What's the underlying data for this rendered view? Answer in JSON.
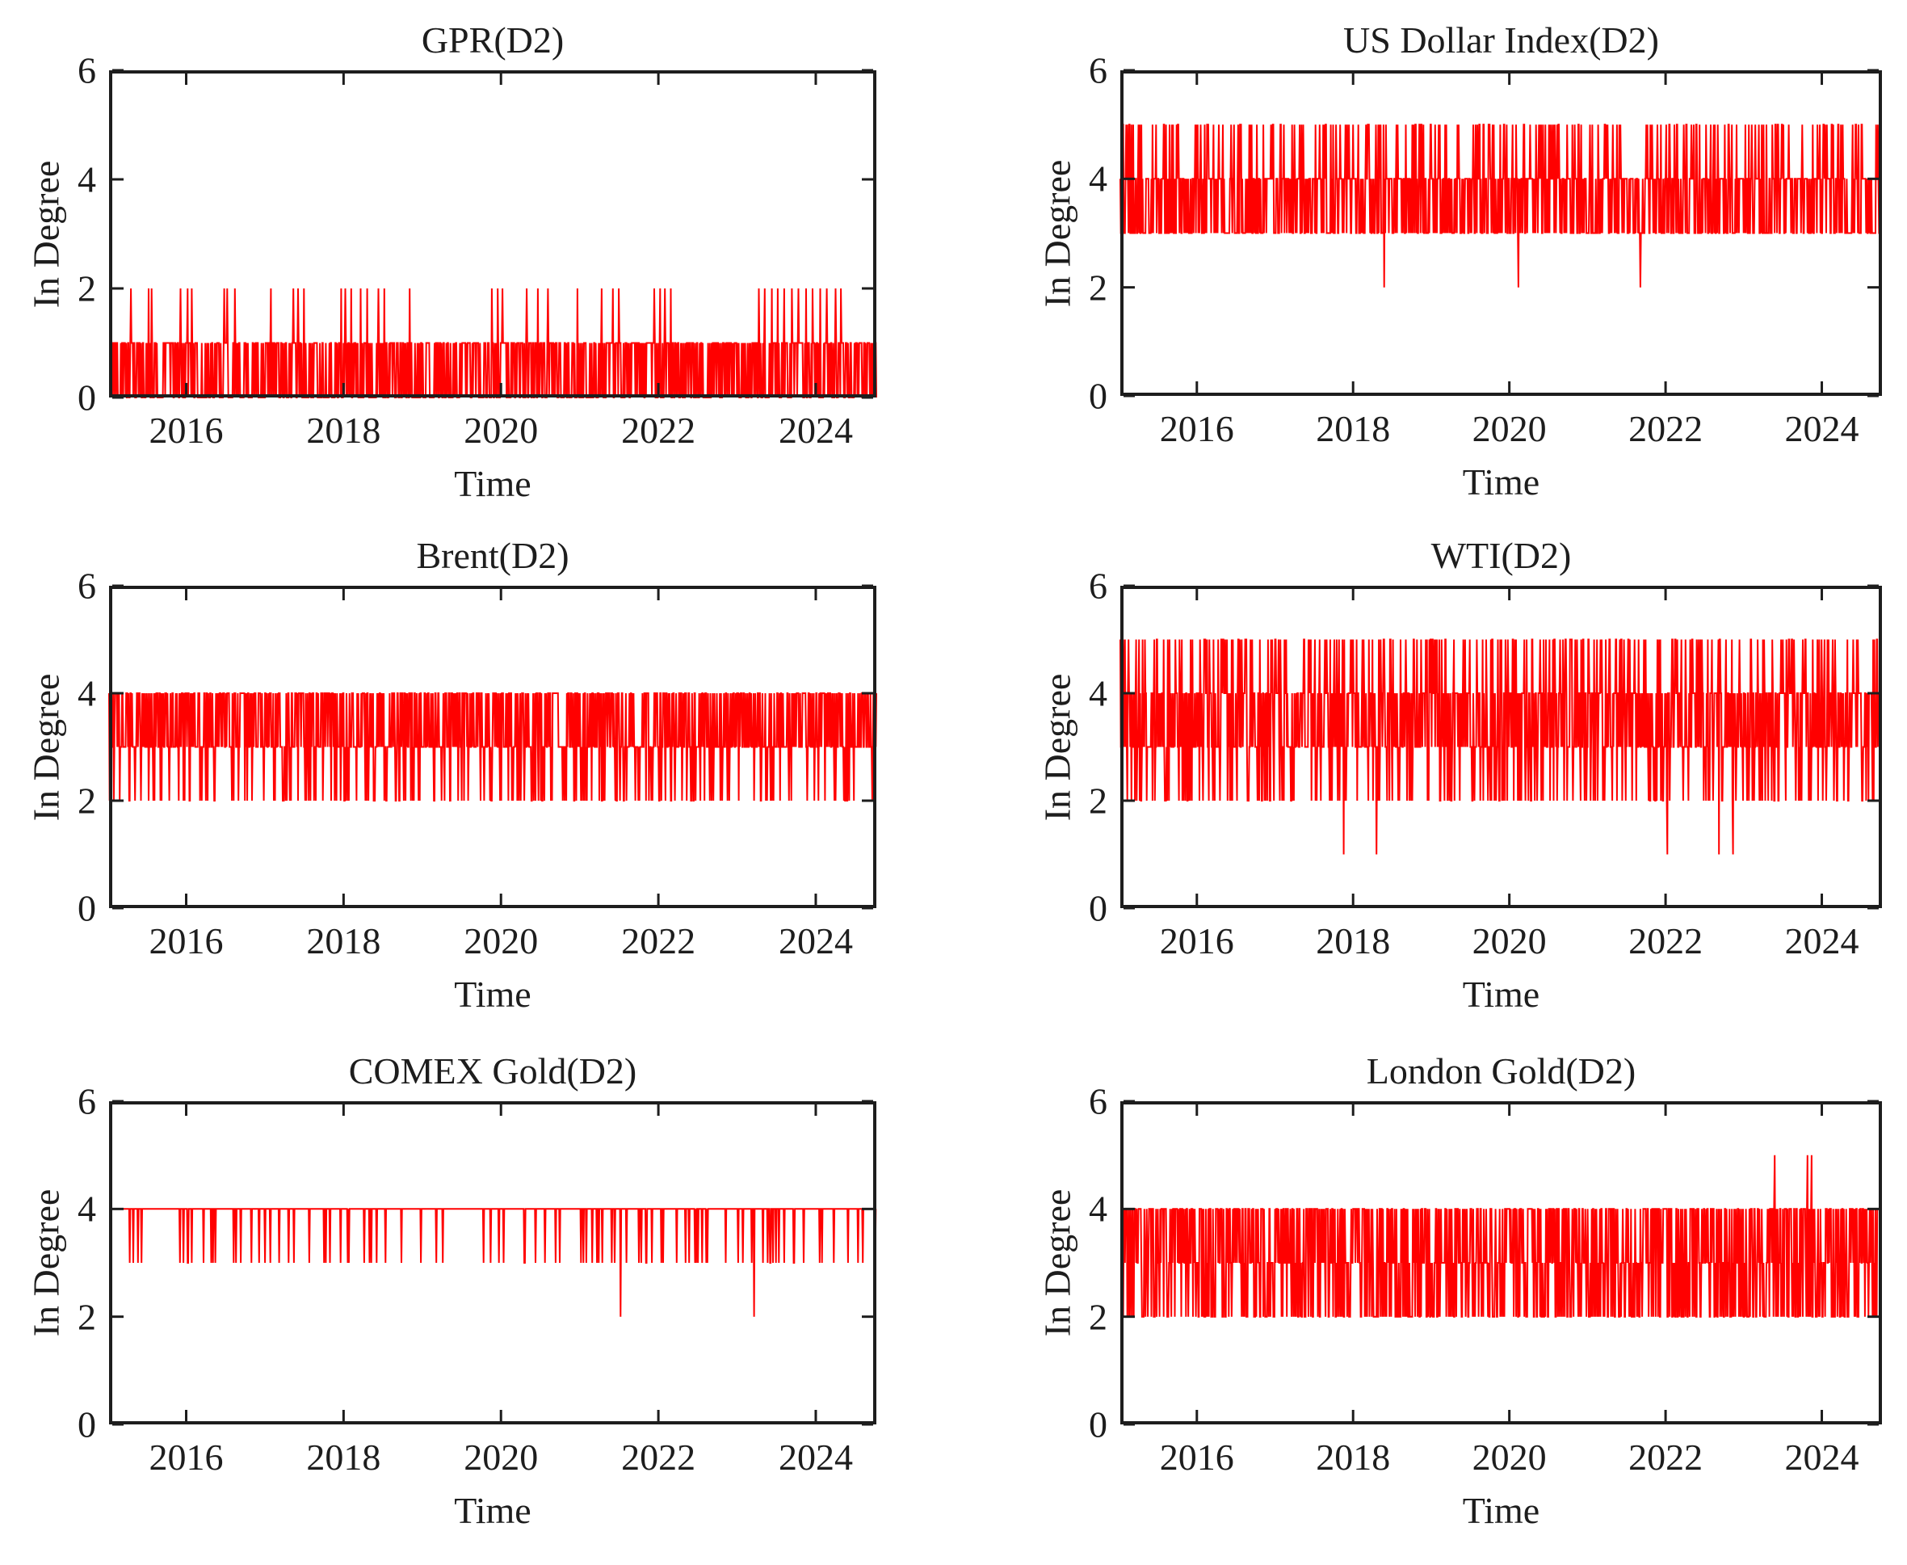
{
  "figure": {
    "background": "#ffffff",
    "axis_color": "#1d1d1d",
    "text_color": "#1d1d1d",
    "series_color": "#ff0000",
    "grid": "off",
    "legend": "none",
    "layout_note": "2 columns x 3 rows of MATLAB-style box axes, red line series"
  },
  "chart_data": [
    {
      "type": "line",
      "title": "GPR(D2)",
      "xlabel": "Time",
      "ylabel": "In Degree",
      "xlim": [
        2015.02,
        2024.77
      ],
      "ylim": [
        0,
        6
      ],
      "xticks": [
        2016,
        2018,
        2020,
        2022,
        2024
      ],
      "xtick_labels": [
        "2016",
        "2018",
        "2020",
        "2022",
        "2024"
      ],
      "yticks": [
        0,
        2,
        4,
        6
      ],
      "ytick_labels": [
        "0",
        "2",
        "4",
        "6"
      ],
      "color": "#ff0000",
      "summary": "In-degree oscillates densely between 0 and 1 for 2015-2024.5; isolated spikes reach 2, clustered in 2015-2018.5, 2020-2022.2 and 2023.2-2024.4; brief all-zero gaps near 2015.65, 2016.16, 2016.57, 2019.03, 2020.78, 2021.1.",
      "series_model": {
        "seed": 11,
        "samples": 1300,
        "levels": [
          0,
          1
        ],
        "probs": [
          0.48,
          0.52
        ],
        "random_spikes": [],
        "flat_intervals": [
          [
            2015.63,
            2015.68,
            0
          ],
          [
            2016.14,
            2016.19,
            0
          ],
          [
            2016.55,
            2016.59,
            0
          ],
          [
            2019.01,
            2019.05,
            0
          ],
          [
            2020.76,
            2020.8,
            0
          ],
          [
            2021.08,
            2021.12,
            0
          ]
        ],
        "events": [
          [
            2015.3,
            2
          ],
          [
            2015.52,
            2
          ],
          [
            2015.56,
            2
          ],
          [
            2015.93,
            2
          ],
          [
            2016.02,
            2
          ],
          [
            2016.07,
            2
          ],
          [
            2016.48,
            2
          ],
          [
            2016.52,
            2
          ],
          [
            2016.62,
            2
          ],
          [
            2017.08,
            2
          ],
          [
            2017.36,
            2
          ],
          [
            2017.42,
            2
          ],
          [
            2017.5,
            2
          ],
          [
            2017.97,
            2
          ],
          [
            2018.02,
            2
          ],
          [
            2018.1,
            2
          ],
          [
            2018.22,
            2
          ],
          [
            2018.3,
            2
          ],
          [
            2018.44,
            2
          ],
          [
            2018.52,
            2
          ],
          [
            2018.84,
            2
          ],
          [
            2019.88,
            2
          ],
          [
            2019.96,
            2
          ],
          [
            2020.02,
            2
          ],
          [
            2020.33,
            2
          ],
          [
            2020.47,
            2
          ],
          [
            2020.6,
            2
          ],
          [
            2020.97,
            2
          ],
          [
            2021.28,
            2
          ],
          [
            2021.42,
            2
          ],
          [
            2021.5,
            2
          ],
          [
            2021.95,
            2
          ],
          [
            2022.02,
            2
          ],
          [
            2022.08,
            2
          ],
          [
            2022.16,
            2
          ],
          [
            2023.28,
            2
          ],
          [
            2023.35,
            2
          ],
          [
            2023.44,
            2
          ],
          [
            2023.52,
            2
          ],
          [
            2023.6,
            2
          ],
          [
            2023.7,
            2
          ],
          [
            2023.78,
            2
          ],
          [
            2023.88,
            2
          ],
          [
            2023.96,
            2
          ],
          [
            2024.06,
            2
          ],
          [
            2024.14,
            2
          ],
          [
            2024.25,
            2
          ],
          [
            2024.32,
            2
          ]
        ]
      }
    },
    {
      "type": "line",
      "title": "US Dollar Index(D2)",
      "xlabel": "Time",
      "ylabel": "In Degree",
      "xlim": [
        2015.02,
        2024.77
      ],
      "ylim": [
        0,
        6
      ],
      "xticks": [
        2016,
        2018,
        2020,
        2022,
        2024
      ],
      "xtick_labels": [
        "2016",
        "2018",
        "2020",
        "2022",
        "2024"
      ],
      "yticks": [
        0,
        2,
        4,
        6
      ],
      "ytick_labels": [
        "0",
        "2",
        "4",
        "6"
      ],
      "color": "#ff0000",
      "summary": "Dense band oscillating between 3 and 4 over the whole sample; frequent spikes to 5 throughout; three isolated drops to 2 near 2018.4, 2020.1 and 2021.7.",
      "series_model": {
        "seed": 22,
        "samples": 1300,
        "levels": [
          3,
          4
        ],
        "probs": [
          0.5,
          0.5
        ],
        "random_spikes": [
          {
            "level": 5,
            "prob": 0.17
          }
        ],
        "flat_intervals": [],
        "events": [
          [
            2018.4,
            2
          ],
          [
            2020.12,
            2
          ],
          [
            2021.68,
            2
          ]
        ]
      }
    },
    {
      "type": "line",
      "title": "Brent(D2)",
      "xlabel": "Time",
      "ylabel": "In Degree",
      "xlim": [
        2015.02,
        2024.77
      ],
      "ylim": [
        0,
        6
      ],
      "xticks": [
        2016,
        2018,
        2020,
        2022,
        2024
      ],
      "xtick_labels": [
        "2016",
        "2018",
        "2020",
        "2022",
        "2024"
      ],
      "yticks": [
        0,
        2,
        4,
        6
      ],
      "ytick_labels": [
        "0",
        "2",
        "4",
        "6"
      ],
      "color": "#ff0000",
      "summary": "Dense band oscillating between 3 and 4; frequent thin drops to 2 scattered across 2015-2024.5; no values above 4.",
      "series_model": {
        "seed": 33,
        "samples": 1300,
        "levels": [
          3,
          4
        ],
        "probs": [
          0.52,
          0.48
        ],
        "random_spikes": [
          {
            "level": 2,
            "prob": 0.13
          }
        ],
        "flat_intervals": [],
        "events": []
      }
    },
    {
      "type": "line",
      "title": "WTI(D2)",
      "xlabel": "Time",
      "ylabel": "In Degree",
      "xlim": [
        2015.02,
        2024.77
      ],
      "ylim": [
        0,
        6
      ],
      "xticks": [
        2016,
        2018,
        2020,
        2022,
        2024
      ],
      "xtick_labels": [
        "2016",
        "2018",
        "2020",
        "2022",
        "2024"
      ],
      "yticks": [
        0,
        2,
        4,
        6
      ],
      "ytick_labels": [
        "0",
        "2",
        "4",
        "6"
      ],
      "color": "#ff0000",
      "summary": "Dense band between 3 and 4 with frequent spikes up to 5 and down to 2 across the whole period; rare deep drops to 1 near 2017.9, 2018.3, 2022.0, 2022.7 and 2022.9.",
      "series_model": {
        "seed": 44,
        "samples": 1300,
        "levels": [
          3,
          4
        ],
        "probs": [
          0.5,
          0.5
        ],
        "random_spikes": [
          {
            "level": 5,
            "prob": 0.18
          },
          {
            "level": 2,
            "prob": 0.18
          }
        ],
        "flat_intervals": [],
        "events": [
          [
            2017.88,
            1
          ],
          [
            2018.3,
            1
          ],
          [
            2022.02,
            1
          ],
          [
            2022.68,
            1
          ],
          [
            2022.86,
            1
          ]
        ]
      }
    },
    {
      "type": "line",
      "title": "COMEX Gold(D2)",
      "xlabel": "Time",
      "ylabel": "In Degree",
      "xlim": [
        2015.02,
        2024.77
      ],
      "ylim": [
        0,
        6
      ],
      "xticks": [
        2016,
        2018,
        2020,
        2022,
        2024
      ],
      "xtick_labels": [
        "2016",
        "2018",
        "2020",
        "2022",
        "2024"
      ],
      "yticks": [
        0,
        2,
        4,
        6
      ],
      "ytick_labels": [
        "0",
        "2",
        "4",
        "6"
      ],
      "color": "#ff0000",
      "summary": "Nearly constant level of 4 with many isolated thin dips to 3 throughout; two deeper dips to 2 near 2021.5 and 2023.2.",
      "series_model": {
        "seed": 55,
        "samples": 1300,
        "levels": [
          4,
          3
        ],
        "probs": [
          0.93,
          0.07
        ],
        "random_spikes": [],
        "flat_intervals": [],
        "events": [
          [
            2021.52,
            2
          ],
          [
            2023.22,
            2
          ]
        ]
      }
    },
    {
      "type": "line",
      "title": "London Gold(D2)",
      "xlabel": "Time",
      "ylabel": "In Degree",
      "xlim": [
        2015.02,
        2024.77
      ],
      "ylim": [
        0,
        6
      ],
      "xticks": [
        2016,
        2018,
        2020,
        2022,
        2024
      ],
      "xtick_labels": [
        "2016",
        "2018",
        "2020",
        "2022",
        "2024"
      ],
      "yticks": [
        0,
        2,
        4,
        6
      ],
      "ytick_labels": [
        "0",
        "2",
        "4",
        "6"
      ],
      "color": "#ff0000",
      "summary": "Very dense band filling 2 to 4 for the whole period; two isolated spikes to 5 near 2023.4 and a double spike near 2023.85.",
      "series_model": {
        "seed": 66,
        "samples": 1300,
        "levels": [
          4,
          3,
          2
        ],
        "probs": [
          0.4,
          0.27,
          0.33
        ],
        "random_spikes": [],
        "flat_intervals": [],
        "events": [
          [
            2023.4,
            5
          ],
          [
            2023.82,
            5
          ],
          [
            2023.87,
            5
          ]
        ]
      }
    }
  ]
}
